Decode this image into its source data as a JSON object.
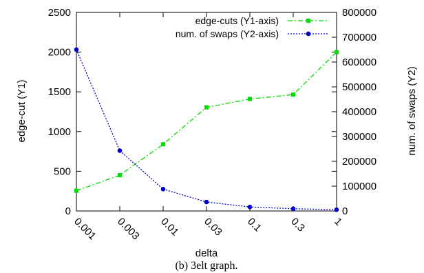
{
  "chart_data": {
    "type": "line",
    "xlabel": "delta",
    "y1label": "edge-cut (Y1)",
    "y2label": "num. of swaps (Y2)",
    "categories": [
      "0.001",
      "0.003",
      "0.01",
      "0.03",
      "0.1",
      "0.3",
      "1"
    ],
    "y1lim": [
      0,
      2500
    ],
    "y1ticks": [
      "0",
      "500",
      "1000",
      "1500",
      "2000",
      "2500"
    ],
    "y2lim": [
      0,
      800000
    ],
    "y2ticks": [
      "0",
      "100000",
      "200000",
      "300000",
      "400000",
      "500000",
      "600000",
      "700000",
      "800000"
    ],
    "grid": false,
    "legend_position": "top-right",
    "series": [
      {
        "name": "edge-cuts (Y1-axis)",
        "axis": "y1",
        "color": "#00dd00",
        "marker": "square",
        "values": [
          255,
          450,
          840,
          1305,
          1410,
          1465,
          2000
        ]
      },
      {
        "name": "num. of swaps (Y2-axis)",
        "axis": "y2",
        "color": "#0000cc",
        "marker": "circle",
        "values": [
          650000,
          243000,
          88000,
          36000,
          16000,
          9000,
          5000
        ]
      }
    ]
  },
  "caption": "(b) 3elt graph."
}
